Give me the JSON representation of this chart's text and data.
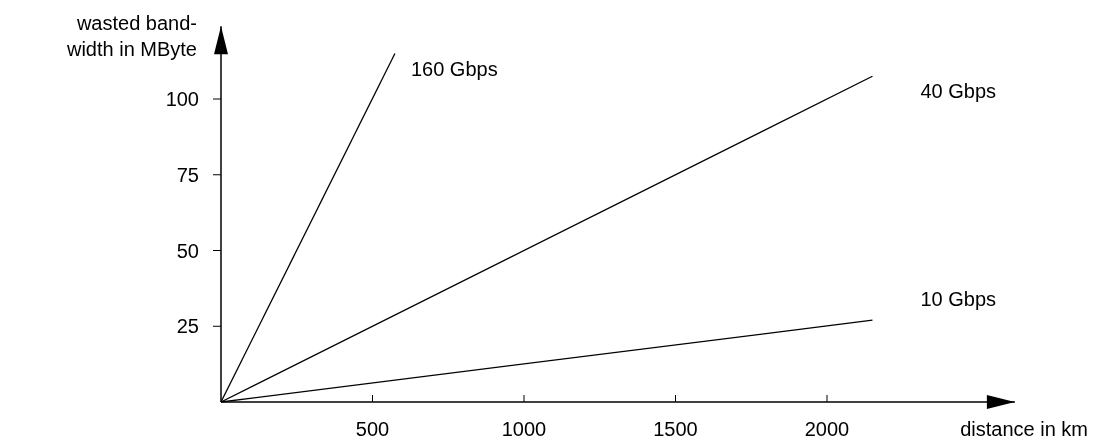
{
  "chart_data": {
    "type": "line",
    "xlabel": "distance in km",
    "ylabel": "wasted band-\nwidth in MByte",
    "xlim": [
      0,
      2620
    ],
    "ylim": [
      0,
      124
    ],
    "xticks": [
      500,
      1000,
      1500,
      2000
    ],
    "yticks": [
      25,
      50,
      75,
      100
    ],
    "grid": false,
    "marker": "none",
    "line_style": "solid",
    "series": [
      {
        "name": "160 Gbps",
        "color": "#000000",
        "x": [
          0,
          574
        ],
        "values": [
          0,
          115
        ]
      },
      {
        "name": "40 Gbps",
        "color": "#000000",
        "x": [
          0,
          2150
        ],
        "values": [
          0,
          107.5
        ]
      },
      {
        "name": "10 Gbps",
        "color": "#000000",
        "x": [
          0,
          2150
        ],
        "values": [
          0,
          27
        ]
      }
    ]
  }
}
